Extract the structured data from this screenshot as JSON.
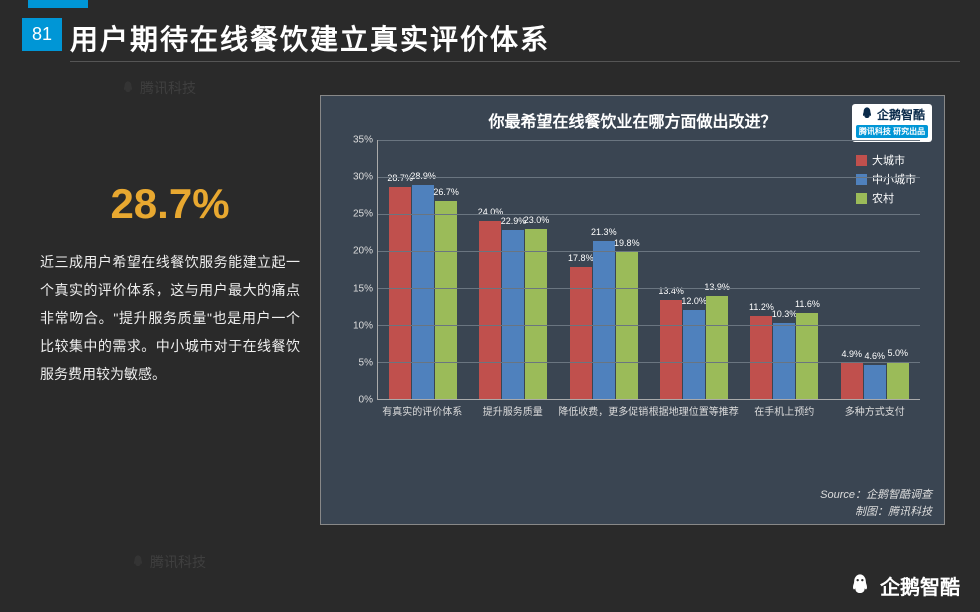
{
  "slide_number": "81",
  "title": "用户期待在线餐饮建立真实评价体系",
  "highlight_stat": "28.7%",
  "description": "近三成用户希望在线餐饮服务能建立起一个真实的评价体系，这与用户最大的痛点非常吻合。\"提升服务质量\"也是用户一个比较集中的需求。中小城市对于在线餐饮服务费用较为敏感。",
  "chart": {
    "type": "bar",
    "title": "你最希望在线餐饮业在哪方面做出改进？",
    "badge_top": "企鹅智酷",
    "badge_bottom": "腾讯科技 研究出品",
    "y_axis": {
      "min": 0,
      "max": 35,
      "step": 5,
      "suffix": "%"
    },
    "series": [
      {
        "name": "大城市",
        "color": "#c0504d"
      },
      {
        "name": "中小城市",
        "color": "#4f81bd"
      },
      {
        "name": "农村",
        "color": "#9bbb59"
      }
    ],
    "categories": [
      "有真实的评价体系",
      "提升服务质量",
      "降低收费，更多促销",
      "根据地理位置等推荐",
      "在手机上预约",
      "多种方式支付"
    ],
    "data": [
      [
        28.7,
        28.9,
        26.7
      ],
      [
        24.0,
        22.9,
        23.0
      ],
      [
        17.8,
        21.3,
        19.8
      ],
      [
        13.4,
        12.0,
        13.9
      ],
      [
        11.2,
        10.3,
        11.6
      ],
      [
        4.9,
        4.6,
        5.0
      ]
    ],
    "background_color": "#3a4552",
    "grid_color": "#6a7580",
    "text_color": "#ffffff",
    "source_line1": "Source：企鹅智酷调查",
    "source_line2": "制图：腾讯科技"
  },
  "footer_brand": "企鹅智酷",
  "watermark_text": "腾讯科技",
  "styling": {
    "page_bg": "#2a2a2a",
    "accent": "#0096d6",
    "stat_color": "#e8a830"
  }
}
